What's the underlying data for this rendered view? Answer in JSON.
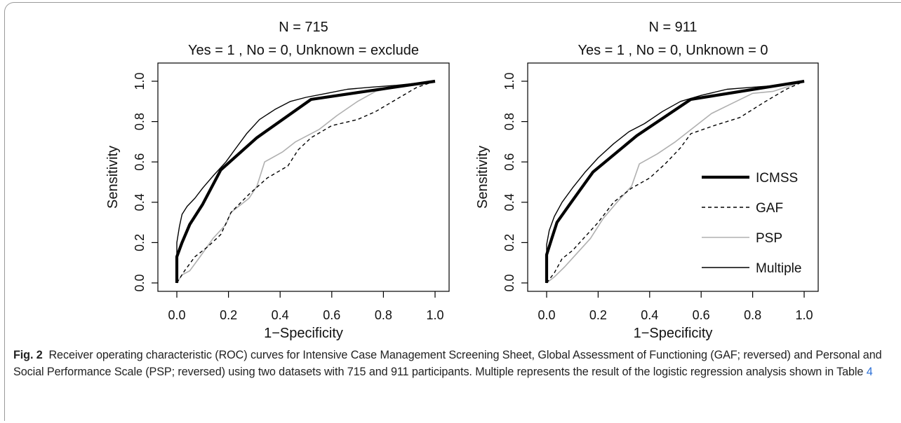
{
  "figure": {
    "caption_label": "Fig. 2",
    "caption_text": "Receiver operating characteristic (ROC) curves for Intensive Case Management Screening Sheet, Global Assessment of Functioning (GAF; reversed) and Personal and Social Performance Scale (PSP; reversed) using two datasets with 715 and 911 participants. Multiple represents the result of the logistic regression analysis shown in Table",
    "caption_ref": "4"
  },
  "colors": {
    "icmss": "#000000",
    "gaf": "#000000",
    "psp": "#b0b0b0",
    "multiple": "#000000"
  },
  "chart_data": [
    {
      "type": "line",
      "title": "N = 715",
      "subtitle": "Yes = 1 , No = 0, Unknown = exclude",
      "xlabel": "1−Specificity",
      "ylabel": "Sensitivity",
      "xlim": [
        0,
        1
      ],
      "ylim": [
        0,
        1
      ],
      "xticks": [
        "0.0",
        "0.2",
        "0.4",
        "0.6",
        "0.8",
        "1.0"
      ],
      "yticks": [
        "0.0",
        "0.2",
        "0.4",
        "0.6",
        "0.8",
        "1.0"
      ],
      "legend": null,
      "series": [
        {
          "name": "ICMSS",
          "style": "thick",
          "points": [
            [
              0,
              0
            ],
            [
              0,
              0.13
            ],
            [
              0.02,
              0.2
            ],
            [
              0.05,
              0.29
            ],
            [
              0.1,
              0.39
            ],
            [
              0.17,
              0.56
            ],
            [
              0.31,
              0.72
            ],
            [
              0.52,
              0.91
            ],
            [
              1,
              1
            ]
          ]
        },
        {
          "name": "GAF",
          "style": "dashed",
          "points": [
            [
              0,
              0
            ],
            [
              0.03,
              0.06
            ],
            [
              0.07,
              0.13
            ],
            [
              0.12,
              0.18
            ],
            [
              0.17,
              0.24
            ],
            [
              0.21,
              0.35
            ],
            [
              0.28,
              0.44
            ],
            [
              0.35,
              0.52
            ],
            [
              0.43,
              0.58
            ],
            [
              0.47,
              0.66
            ],
            [
              0.52,
              0.72
            ],
            [
              0.6,
              0.78
            ],
            [
              0.7,
              0.81
            ],
            [
              0.77,
              0.85
            ],
            [
              0.85,
              0.91
            ],
            [
              0.93,
              0.97
            ],
            [
              1,
              1
            ]
          ]
        },
        {
          "name": "PSP",
          "style": "gray",
          "points": [
            [
              0,
              0
            ],
            [
              0.02,
              0.04
            ],
            [
              0.05,
              0.06
            ],
            [
              0.09,
              0.13
            ],
            [
              0.14,
              0.22
            ],
            [
              0.19,
              0.29
            ],
            [
              0.21,
              0.35
            ],
            [
              0.28,
              0.42
            ],
            [
              0.31,
              0.48
            ],
            [
              0.34,
              0.6
            ],
            [
              0.41,
              0.65
            ],
            [
              0.46,
              0.7
            ],
            [
              0.55,
              0.76
            ],
            [
              0.62,
              0.83
            ],
            [
              0.7,
              0.9
            ],
            [
              0.77,
              0.95
            ],
            [
              0.85,
              0.97
            ],
            [
              1,
              1
            ]
          ]
        },
        {
          "name": "Multiple",
          "style": "thin",
          "points": [
            [
              0,
              0
            ],
            [
              0,
              0.2
            ],
            [
              0.01,
              0.28
            ],
            [
              0.02,
              0.34
            ],
            [
              0.04,
              0.38
            ],
            [
              0.07,
              0.42
            ],
            [
              0.1,
              0.47
            ],
            [
              0.14,
              0.53
            ],
            [
              0.19,
              0.6
            ],
            [
              0.23,
              0.67
            ],
            [
              0.27,
              0.74
            ],
            [
              0.32,
              0.81
            ],
            [
              0.38,
              0.86
            ],
            [
              0.44,
              0.9
            ],
            [
              0.5,
              0.92
            ],
            [
              0.58,
              0.94
            ],
            [
              0.66,
              0.96
            ],
            [
              0.75,
              0.97
            ],
            [
              0.85,
              0.98
            ],
            [
              1,
              1
            ]
          ]
        }
      ]
    },
    {
      "type": "line",
      "title": "N = 911",
      "subtitle": "Yes = 1 , No = 0, Unknown = 0",
      "xlabel": "1−Specificity",
      "ylabel": "Sensitivity",
      "xlim": [
        0,
        1
      ],
      "ylim": [
        0,
        1
      ],
      "xticks": [
        "0.0",
        "0.2",
        "0.4",
        "0.6",
        "0.8",
        "1.0"
      ],
      "yticks": [
        "0.0",
        "0.2",
        "0.4",
        "0.6",
        "0.8",
        "1.0"
      ],
      "legend": {
        "position": "bottom-right",
        "entries": [
          "ICMSS",
          "GAF",
          "PSP",
          "Multiple"
        ]
      },
      "series": [
        {
          "name": "ICMSS",
          "style": "thick",
          "points": [
            [
              0,
              0
            ],
            [
              0,
              0.14
            ],
            [
              0.02,
              0.22
            ],
            [
              0.04,
              0.3
            ],
            [
              0.09,
              0.39
            ],
            [
              0.18,
              0.55
            ],
            [
              0.35,
              0.73
            ],
            [
              0.56,
              0.91
            ],
            [
              1,
              1
            ]
          ]
        },
        {
          "name": "GAF",
          "style": "dashed",
          "points": [
            [
              0,
              0
            ],
            [
              0.03,
              0.05
            ],
            [
              0.06,
              0.12
            ],
            [
              0.1,
              0.16
            ],
            [
              0.15,
              0.23
            ],
            [
              0.2,
              0.3
            ],
            [
              0.26,
              0.4
            ],
            [
              0.33,
              0.47
            ],
            [
              0.4,
              0.52
            ],
            [
              0.46,
              0.59
            ],
            [
              0.52,
              0.67
            ],
            [
              0.56,
              0.74
            ],
            [
              0.65,
              0.78
            ],
            [
              0.75,
              0.82
            ],
            [
              0.85,
              0.9
            ],
            [
              0.93,
              0.96
            ],
            [
              1,
              1
            ]
          ]
        },
        {
          "name": "PSP",
          "style": "gray",
          "points": [
            [
              0,
              0
            ],
            [
              0.03,
              0.03
            ],
            [
              0.07,
              0.08
            ],
            [
              0.12,
              0.15
            ],
            [
              0.17,
              0.22
            ],
            [
              0.22,
              0.32
            ],
            [
              0.28,
              0.41
            ],
            [
              0.33,
              0.48
            ],
            [
              0.36,
              0.59
            ],
            [
              0.43,
              0.64
            ],
            [
              0.5,
              0.7
            ],
            [
              0.57,
              0.77
            ],
            [
              0.64,
              0.84
            ],
            [
              0.72,
              0.89
            ],
            [
              0.8,
              0.94
            ],
            [
              0.88,
              0.95
            ],
            [
              1,
              1
            ]
          ]
        },
        {
          "name": "Multiple",
          "style": "thin",
          "points": [
            [
              0,
              0
            ],
            [
              0,
              0.19
            ],
            [
              0.01,
              0.26
            ],
            [
              0.03,
              0.33
            ],
            [
              0.06,
              0.4
            ],
            [
              0.1,
              0.47
            ],
            [
              0.15,
              0.55
            ],
            [
              0.2,
              0.62
            ],
            [
              0.26,
              0.69
            ],
            [
              0.32,
              0.75
            ],
            [
              0.38,
              0.79
            ],
            [
              0.45,
              0.85
            ],
            [
              0.52,
              0.9
            ],
            [
              0.6,
              0.93
            ],
            [
              0.7,
              0.96
            ],
            [
              0.8,
              0.97
            ],
            [
              0.9,
              0.98
            ],
            [
              1,
              1
            ]
          ]
        }
      ]
    }
  ]
}
